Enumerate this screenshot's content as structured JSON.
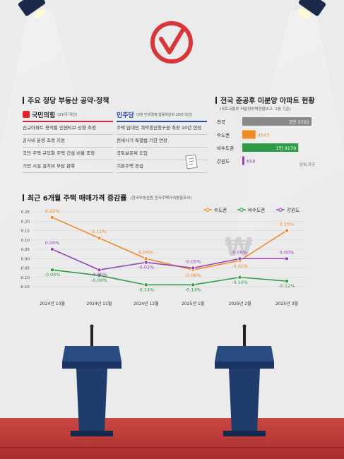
{
  "colors": {
    "ppp_red": "#e2222f",
    "dp_blue": "#1f4aa8",
    "seoul": "#f08a24",
    "non_capital": "#2f9b46",
    "gangwon": "#9442b8",
    "ballot_red": "#d9363a",
    "floor_red": "#c6403c",
    "podium": "#1f3c6c"
  },
  "policy": {
    "title": "주요 정당 부동산 공약·정책",
    "ppp": {
      "name": "국민의힘",
      "note": "(21대 대선)",
      "items": [
        "신규아파트 용적률 인센티브 상향 조정",
        "공사비 분쟁 조정 지원",
        "국민 주택 규모화 주택 건설 비율 조정",
        "기반 시설 설치비 부담 완화"
      ]
    },
    "dp": {
      "name": "민주당",
      "note": "(3월 민생경제 법률위원회 20대 대선)",
      "items": [
        "주택 임대인 계약갱신청구권 최장 10년 연장",
        "전세사기 특별법 기한 연장",
        "국토보유세 도입",
        "기본주택 공급"
      ]
    }
  },
  "unsold": {
    "title": "전국 준공후 미분양 아파트 현황",
    "source": "(국토교통부 미분양주택현황보고, 2월 기준)",
    "unit": "단위:가구",
    "items": [
      {
        "label": "전국",
        "value_label": "2만 3722",
        "value": 23722,
        "color": "#8a8a8a"
      },
      {
        "label": "수도권",
        "value_label": "4543",
        "value": 4543,
        "color": "#f08a24"
      },
      {
        "label": "비수도권",
        "value_label": "1만 9179",
        "value": 19179,
        "color": "#2f9b46"
      },
      {
        "label": "강원도",
        "value_label": "658",
        "value": 658,
        "color": "#9442b8"
      }
    ]
  },
  "chart_data": {
    "type": "line",
    "title": "최근 6개월 주택 매매가격 증감률",
    "source": "(한국부동산원 전국주택가격동향조사)",
    "categories": [
      "2024년 10월",
      "2024년 11월",
      "2024년 12월",
      "2025년 1월",
      "2025년 2월",
      "2025년 3월"
    ],
    "y_ticks": [
      "0.25",
      "0.20",
      "0.15",
      "0.10",
      "0.05",
      "0.00",
      "-0.05",
      "-0.10",
      "-0.15"
    ],
    "ylim": [
      -0.15,
      0.25
    ],
    "series": [
      {
        "name": "수도권",
        "color": "#f08a24",
        "values": [
          0.22,
          0.11,
          0.0,
          -0.06,
          -0.01,
          0.15
        ],
        "labels": [
          "0.22%",
          "0.11%",
          "0.00%",
          "-0.06%",
          "-0.01%",
          "0.15%"
        ]
      },
      {
        "name": "비수도권",
        "color": "#2f9b46",
        "values": [
          -0.06,
          -0.09,
          -0.14,
          -0.14,
          -0.1,
          -0.12
        ],
        "labels": [
          "-0.06%",
          "-0.09%",
          "-0.14%",
          "-0.14%",
          "-0.10%",
          "-0.12%"
        ]
      },
      {
        "name": "강원도",
        "color": "#9442b8",
        "values": [
          0.05,
          -0.06,
          -0.02,
          -0.05,
          0.0,
          0.0
        ],
        "labels": [
          "0.05%",
          "-0.06%",
          "-0.02%",
          "-0.05%",
          "0.00%",
          "0.00%"
        ]
      }
    ]
  }
}
